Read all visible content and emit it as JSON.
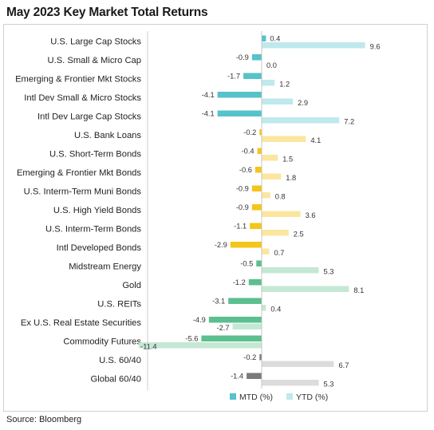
{
  "title": "May 2023 Key Market Total Returns",
  "source": "Source: Bloomberg",
  "chart_data": {
    "type": "bar",
    "orientation": "horizontal",
    "categories": [
      "U.S. Large Cap Stocks",
      "U.S. Small & Micro Cap",
      "Emerging & Frontier Mkt Stocks",
      "Intl Dev Small & Micro Stocks",
      "Intl Dev Large Cap Stocks",
      "U.S. Bank Loans",
      "U.S. Short-Term Bonds",
      "Emerging & Frontier Mkt Bonds",
      "U.S. Interm-Term Muni Bonds",
      "U.S. High Yield Bonds",
      "U.S. Interm-Term Bonds",
      "Intl Developed Bonds",
      "Midstream Energy",
      "Gold",
      "U.S. REITs",
      "Ex U.S. Real Estate Securities",
      "Commodity Futures",
      "U.S. 60/40",
      "Global 60/40"
    ],
    "series": [
      {
        "name": "MTD (%)",
        "values": [
          0.4,
          -0.9,
          -1.7,
          -4.1,
          -4.1,
          -0.2,
          -0.4,
          -0.6,
          -0.9,
          -0.9,
          -1.1,
          -2.9,
          -0.5,
          -1.2,
          -3.1,
          -4.9,
          -5.6,
          -0.2,
          -1.4
        ]
      },
      {
        "name": "YTD (%)",
        "values": [
          9.6,
          0.0,
          1.2,
          2.9,
          7.2,
          4.1,
          1.5,
          1.8,
          0.8,
          3.6,
          2.5,
          0.7,
          5.3,
          8.1,
          0.4,
          -2.7,
          -11.4,
          6.7,
          5.3
        ]
      }
    ],
    "groups": [
      "equity",
      "equity",
      "equity",
      "equity",
      "equity",
      "fixed",
      "fixed",
      "fixed",
      "fixed",
      "fixed",
      "fixed",
      "fixed",
      "real",
      "real",
      "real",
      "real",
      "real",
      "balanced",
      "balanced"
    ],
    "colors": {
      "equity": {
        "mtd": "#56c2c9",
        "ytd": "#bfe9ec"
      },
      "fixed": {
        "mtd": "#f5c518",
        "ytd": "#fbe6a0"
      },
      "real": {
        "mtd": "#5cbf8f",
        "ytd": "#c4e8d4"
      },
      "balanced": {
        "mtd": "#7a7a7a",
        "ytd": "#dcdcdc"
      },
      "legend_mtd": "#56c2c9",
      "legend_ytd": "#bfe9ec"
    },
    "legend": [
      "MTD (%)",
      "YTD (%)"
    ],
    "legend_position": "bottom",
    "grid": false
  }
}
